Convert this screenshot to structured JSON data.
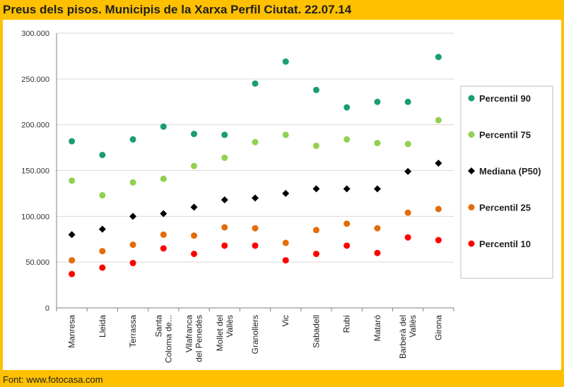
{
  "title": "Preus dels pisos. Municipis de la Xarxa Perfil Ciutat. 22.07.14",
  "footer": "Font: www.fotocasa.com",
  "chart_data": {
    "type": "scatter",
    "categories": [
      [
        "Manresa"
      ],
      [
        "Lleida"
      ],
      [
        "Terrassa"
      ],
      [
        "Santa",
        "Coloma de..."
      ],
      [
        "Vilafranca",
        "del Penedès"
      ],
      [
        "Mollet del",
        "Vallès"
      ],
      [
        "Granollers"
      ],
      [
        "Vic"
      ],
      [
        "Sabadell"
      ],
      [
        "Rubí"
      ],
      [
        "Mataró"
      ],
      [
        "Barberà del",
        "Vallès"
      ],
      [
        "Girona"
      ]
    ],
    "y_ticks": [
      "0",
      "50.000",
      "100.000",
      "150.000",
      "200.000",
      "250.000",
      "300.000"
    ],
    "ylim": [
      0,
      300000
    ],
    "series": [
      {
        "name": "Percentil 90",
        "color": "#1A9E6E",
        "marker": "circle",
        "values": [
          182000,
          167000,
          184000,
          198000,
          190000,
          189000,
          245000,
          269000,
          238000,
          219000,
          225000,
          225000,
          274000
        ]
      },
      {
        "name": "Percentil 75",
        "color": "#92D050",
        "marker": "circle",
        "values": [
          139000,
          123000,
          137000,
          141000,
          155000,
          164000,
          181000,
          189000,
          177000,
          184000,
          180000,
          179000,
          205000
        ]
      },
      {
        "name": "Mediana (P50)",
        "color": "#000000",
        "marker": "diamond",
        "values": [
          80000,
          86000,
          100000,
          103000,
          110000,
          118000,
          120000,
          125000,
          130000,
          130000,
          130000,
          149000,
          158000
        ]
      },
      {
        "name": "Percentil 25",
        "color": "#E36C0A",
        "marker": "circle",
        "values": [
          52000,
          62000,
          69000,
          80000,
          79000,
          88000,
          87000,
          71000,
          85000,
          92000,
          87000,
          104000,
          108000
        ]
      },
      {
        "name": "Percentil 10",
        "color": "#FF0000",
        "marker": "circle",
        "values": [
          37000,
          44000,
          49000,
          65000,
          59000,
          68000,
          68000,
          52000,
          59000,
          68000,
          60000,
          77000,
          74000
        ]
      }
    ],
    "grid": true,
    "legend": "right"
  }
}
